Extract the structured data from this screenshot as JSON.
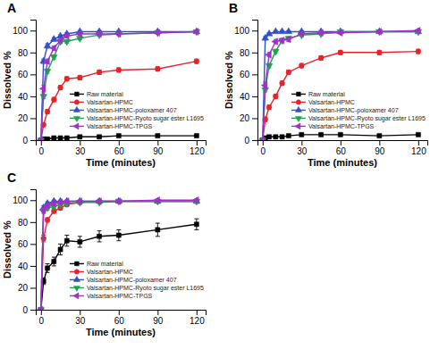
{
  "chart_data": [
    {
      "type": "line",
      "title": "A",
      "x_label": "Time (minutes)",
      "y_label": "Dissolved %",
      "x": [
        0,
        2,
        5,
        10,
        15,
        20,
        30,
        45,
        60,
        90,
        120
      ],
      "xlim": [
        -4,
        127
      ],
      "ylim": [
        0,
        110
      ],
      "xticks": [
        0,
        30,
        60,
        90,
        120
      ],
      "yticks": [
        0,
        20,
        40,
        60,
        80,
        100
      ],
      "legend": "lower right",
      "grid": false,
      "series": [
        {
          "name": "Raw material",
          "color": "#000000",
          "marker": "square",
          "values": [
            0,
            1,
            1,
            2,
            2,
            2,
            3,
            3,
            4,
            4,
            4
          ],
          "errors": [
            0,
            0.5,
            0.5,
            0.5,
            0.5,
            0.5,
            0.5,
            0.5,
            0.5,
            0.5,
            0.5
          ]
        },
        {
          "name": "Valsartan-HPMC",
          "color": "#e8222a",
          "marker": "circle",
          "values": [
            0,
            14,
            26,
            37,
            48,
            56,
            57,
            62,
            64,
            65,
            72
          ],
          "errors": [
            0,
            1.5,
            2,
            2,
            2,
            2,
            2,
            2,
            2,
            2,
            2
          ]
        },
        {
          "name": "Valsartan-HPMC-poloxamer 407",
          "color": "#3050c8",
          "marker": "triangle-up",
          "values": [
            0,
            72,
            86,
            92,
            95,
            97,
            99,
            99,
            99,
            99,
            99
          ],
          "errors": [
            0,
            2,
            2,
            1.5,
            1,
            1,
            1,
            1,
            1,
            1,
            1
          ]
        },
        {
          "name": "Valsartan-HPMC-Ryoto sugar ester L1695",
          "color": "#20a050",
          "marker": "triangle-down",
          "values": [
            0,
            40,
            63,
            76,
            90,
            90,
            93,
            96,
            97,
            98,
            99
          ],
          "errors": [
            0,
            2,
            2,
            2,
            1.5,
            1.5,
            1.5,
            1,
            1,
            1,
            1
          ]
        },
        {
          "name": "Valsartan-HPMC-TPGS",
          "color": "#a030c8",
          "marker": "triangle-left",
          "values": [
            0,
            47,
            72,
            84,
            91,
            95,
            97,
            97,
            97,
            98,
            99
          ],
          "errors": [
            0,
            3,
            2,
            2,
            2,
            1.5,
            1.5,
            1.5,
            1.5,
            1,
            1
          ]
        }
      ]
    },
    {
      "type": "line",
      "title": "B",
      "x_label": "Time (minutes)",
      "y_label": "Dissolved %",
      "x": [
        0,
        2,
        5,
        10,
        15,
        20,
        30,
        45,
        60,
        90,
        120
      ],
      "xlim": [
        -4,
        127
      ],
      "ylim": [
        0,
        110
      ],
      "xticks": [
        0,
        30,
        60,
        90,
        120
      ],
      "yticks": [
        0,
        20,
        40,
        60,
        80,
        100
      ],
      "legend": "lower right",
      "grid": false,
      "series": [
        {
          "name": "Raw material",
          "color": "#000000",
          "marker": "square",
          "values": [
            0,
            2,
            3,
            3,
            3,
            4,
            5,
            5,
            5,
            4,
            5
          ],
          "errors": [
            0,
            0.5,
            0.5,
            0.5,
            0.5,
            0.5,
            0.5,
            0.5,
            0.5,
            0.5,
            0.5
          ]
        },
        {
          "name": "Valsartan-HPMC",
          "color": "#e8222a",
          "marker": "circle",
          "values": [
            0,
            19,
            30,
            40,
            52,
            62,
            68,
            75,
            80,
            80,
            81
          ],
          "errors": [
            0,
            2,
            2,
            2,
            2,
            2,
            2,
            2,
            2,
            2,
            2
          ]
        },
        {
          "name": "Valsartan-HPMC-poloxamer 407",
          "color": "#3050c8",
          "marker": "triangle-up",
          "values": [
            0,
            93,
            97,
            99,
            99,
            99,
            99,
            99,
            99,
            99,
            99
          ],
          "errors": [
            0,
            1.5,
            1,
            1,
            1,
            1,
            1,
            1,
            1,
            1,
            1
          ]
        },
        {
          "name": "Valsartan-HPMC-Ryoto sugar ester L1695",
          "color": "#20a050",
          "marker": "triangle-down",
          "values": [
            0,
            46,
            68,
            81,
            91,
            93,
            96,
            97,
            99,
            99,
            99
          ],
          "errors": [
            0,
            2,
            2,
            2,
            1.5,
            1.5,
            1,
            1,
            1,
            1,
            1
          ]
        },
        {
          "name": "Valsartan-HPMC-TPGS",
          "color": "#a030c8",
          "marker": "triangle-left",
          "values": [
            0,
            50,
            78,
            90,
            91,
            92,
            97,
            98,
            98,
            99,
            100
          ],
          "errors": [
            0,
            3,
            2,
            2,
            2,
            2,
            1.5,
            1.5,
            1,
            1,
            1
          ]
        }
      ]
    },
    {
      "type": "line",
      "title": "C",
      "x_label": "Time (minutes)",
      "y_label": "Dissolved %",
      "x": [
        0,
        2,
        5,
        10,
        15,
        20,
        30,
        45,
        60,
        90,
        120
      ],
      "xlim": [
        -4,
        127
      ],
      "ylim": [
        0,
        110
      ],
      "xticks": [
        0,
        30,
        60,
        90,
        120
      ],
      "yticks": [
        0,
        20,
        40,
        60,
        80,
        100
      ],
      "legend": "lower right",
      "grid": false,
      "series": [
        {
          "name": "Raw material",
          "color": "#000000",
          "marker": "square",
          "values": [
            0,
            26,
            38,
            44,
            55,
            63,
            62,
            67,
            68,
            73,
            78
          ],
          "errors": [
            0,
            3,
            4,
            4,
            5,
            5,
            5,
            5,
            5,
            6,
            5
          ]
        },
        {
          "name": "Valsartan-HPMC",
          "color": "#e8222a",
          "marker": "circle",
          "values": [
            0,
            65,
            82,
            90,
            93,
            96,
            98,
            99,
            99,
            99,
            99
          ],
          "errors": [
            0,
            3,
            2,
            2,
            2,
            1.5,
            1.5,
            1,
            1,
            1,
            1
          ]
        },
        {
          "name": "Valsartan-HPMC-poloxamer 407",
          "color": "#3050c8",
          "marker": "triangle-up",
          "values": [
            0,
            93,
            97,
            99,
            99,
            99,
            99,
            99,
            99,
            99,
            99
          ],
          "errors": [
            0,
            2,
            1.5,
            1,
            1,
            1,
            1,
            1,
            1,
            1,
            1
          ]
        },
        {
          "name": "Valsartan-HPMC-Ryoto sugar ester L1695",
          "color": "#20a050",
          "marker": "triangle-down",
          "values": [
            0,
            90,
            93,
            94,
            96,
            97,
            98,
            98,
            99,
            99,
            99
          ],
          "errors": [
            0,
            2,
            2,
            1.5,
            1.5,
            1,
            1,
            1,
            1,
            1,
            1
          ]
        },
        {
          "name": "Valsartan-HPMC-TPGS",
          "color": "#a030c8",
          "marker": "triangle-left",
          "values": [
            0,
            91,
            95,
            97,
            98,
            99,
            99,
            99,
            99,
            100,
            100
          ],
          "errors": [
            0,
            2,
            2,
            1.5,
            1.5,
            1,
            1,
            1,
            1,
            1,
            1
          ]
        }
      ]
    }
  ]
}
